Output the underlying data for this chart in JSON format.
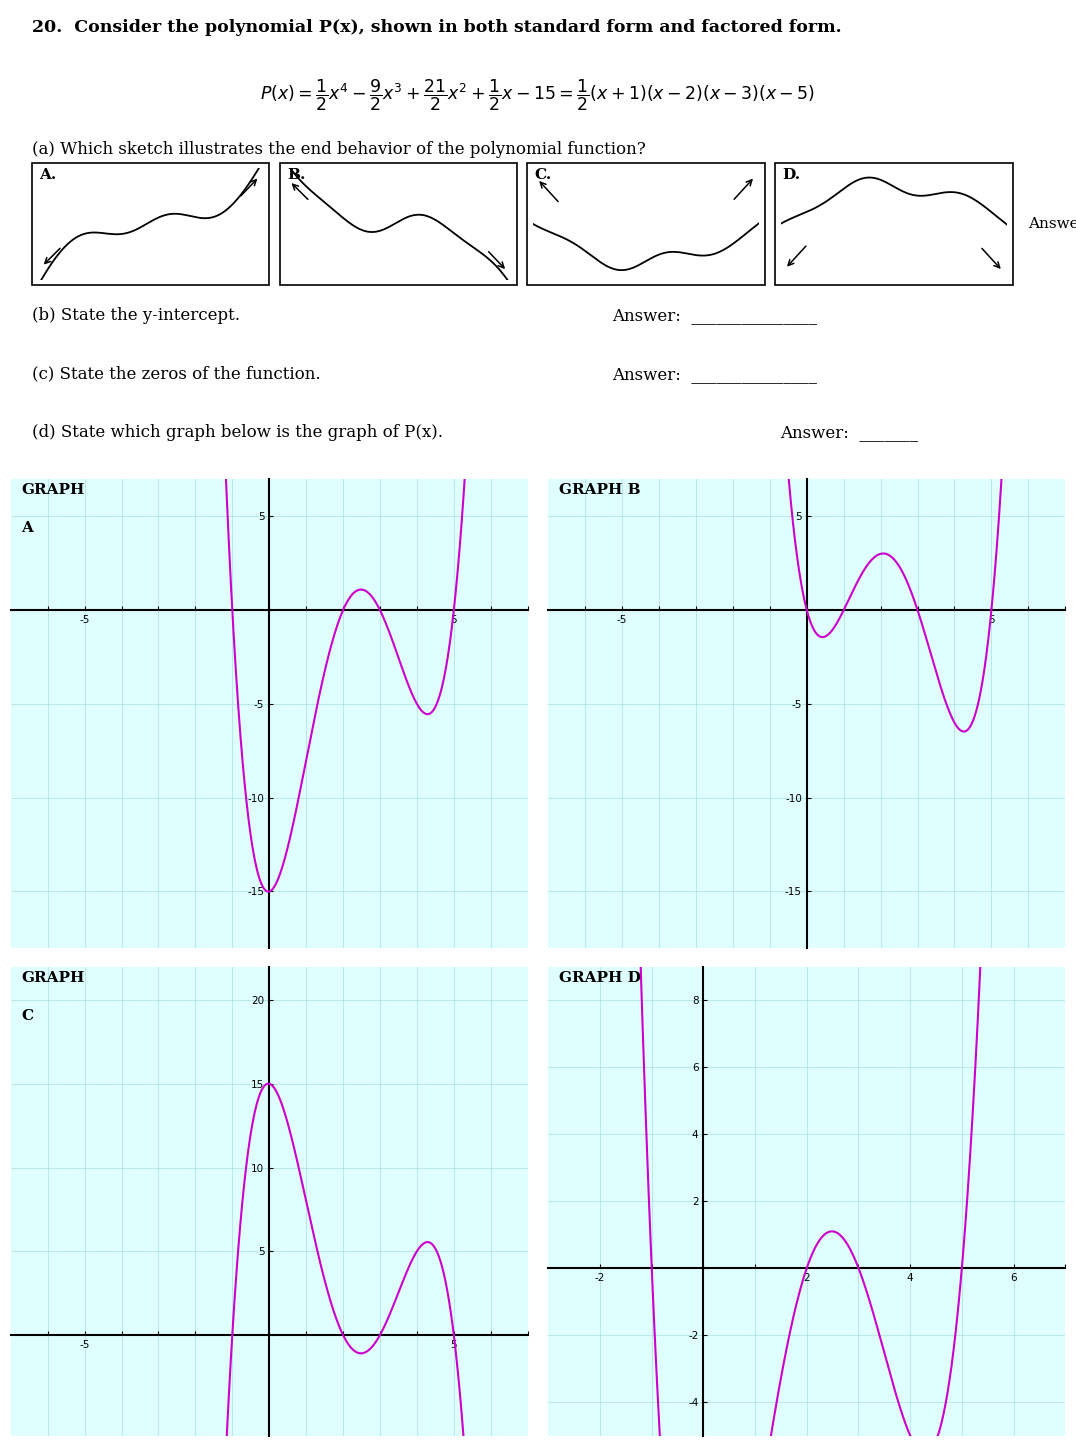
{
  "title_text": "20.  Consider the polynomial P(x), shown in both standard form and factored form.",
  "part_a_text": "(a) Which sketch illustrates the end behavior of the polynomial function?",
  "part_b_text": "(b) State the y-intercept.",
  "part_c_text": "(c) State the zeros of the function.",
  "part_d_text": "(d) State which graph below is the graph of P(x).",
  "answer_label": "Answer:",
  "curve_color": "#CC00CC",
  "grid_color": "#AADDDD",
  "bg_color": "#DFFFFF",
  "background_white": "#FFFFFF",
  "graph_A_xlim": [
    -7,
    7
  ],
  "graph_A_ylim": [
    -18,
    7
  ],
  "graph_B_xlim": [
    -7,
    7
  ],
  "graph_B_ylim": [
    -18,
    7
  ],
  "graph_C_xlim": [
    -7,
    7
  ],
  "graph_C_ylim": [
    -6,
    22
  ],
  "graph_D_xlim": [
    -3,
    7
  ],
  "graph_D_ylim": [
    -5,
    9
  ]
}
